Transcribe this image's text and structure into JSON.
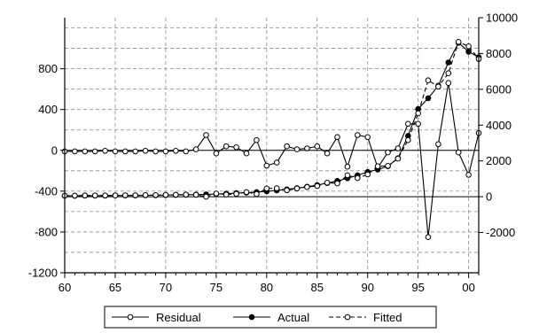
{
  "chart_data": {
    "type": "line",
    "x": [
      1960,
      1961,
      1962,
      1963,
      1964,
      1965,
      1966,
      1967,
      1968,
      1969,
      1970,
      1971,
      1972,
      1973,
      1974,
      1975,
      1976,
      1977,
      1978,
      1979,
      1980,
      1981,
      1982,
      1983,
      1984,
      1985,
      1986,
      1987,
      1988,
      1989,
      1990,
      1991,
      1992,
      1993,
      1994,
      1995,
      1996,
      1997,
      1998,
      1999,
      2000,
      2001
    ],
    "x_tick_labels": [
      "60",
      "65",
      "70",
      "75",
      "80",
      "85",
      "90",
      "95",
      "00"
    ],
    "x_tick_values": [
      1960,
      1965,
      1970,
      1975,
      1980,
      1985,
      1990,
      1995,
      2000
    ],
    "xlim": [
      1960,
      2001
    ],
    "left_axis": {
      "ylim": [
        -1200,
        1300
      ],
      "ticks": [
        -1200,
        -800,
        -400,
        0,
        400,
        800
      ],
      "tick_labels": [
        "-1200",
        "-800",
        "-400",
        "0",
        "400",
        "800"
      ]
    },
    "right_axis": {
      "ylim": [
        -4250,
        10000
      ],
      "ticks": [
        -2000,
        0,
        2000,
        4000,
        6000,
        8000,
        10000
      ],
      "tick_labels": [
        "-2000",
        "0",
        "2000",
        "4000",
        "6000",
        "8000",
        "10000"
      ]
    },
    "grid": true,
    "legend_position": "bottom-center",
    "series": [
      {
        "name": "Residual",
        "axis": "left",
        "marker": "open-circle",
        "line": "solid",
        "values": [
          -10,
          -10,
          -10,
          -10,
          -5,
          -10,
          -10,
          -10,
          -5,
          -10,
          -10,
          -5,
          -10,
          10,
          150,
          -30,
          40,
          30,
          -30,
          100,
          -150,
          -120,
          40,
          10,
          20,
          40,
          -30,
          130,
          -160,
          150,
          130,
          -170,
          -20,
          20,
          260,
          260,
          -850,
          60,
          660,
          -20,
          -240,
          170
        ]
      },
      {
        "name": "Actual",
        "axis": "right",
        "marker": "filled-circle",
        "line": "solid",
        "values": [
          50,
          50,
          60,
          60,
          60,
          70,
          70,
          70,
          80,
          80,
          90,
          100,
          110,
          120,
          130,
          150,
          170,
          200,
          230,
          260,
          300,
          350,
          410,
          480,
          560,
          650,
          760,
          880,
          1030,
          1200,
          1380,
          1520,
          1700,
          2150,
          3400,
          4900,
          5500,
          6200,
          7500,
          8600,
          8100,
          7800
        ]
      },
      {
        "name": "Fitted",
        "axis": "right",
        "marker": "open-circle",
        "line": "dashed",
        "values": [
          60,
          60,
          70,
          70,
          70,
          70,
          80,
          80,
          90,
          90,
          100,
          110,
          120,
          110,
          0,
          180,
          120,
          160,
          260,
          150,
          460,
          470,
          360,
          460,
          540,
          600,
          780,
          740,
          1200,
          1040,
          1240,
          1700,
          1720,
          2130,
          3160,
          4660,
          6500,
          6150,
          6900,
          8650,
          8400,
          7700
        ]
      }
    ]
  }
}
